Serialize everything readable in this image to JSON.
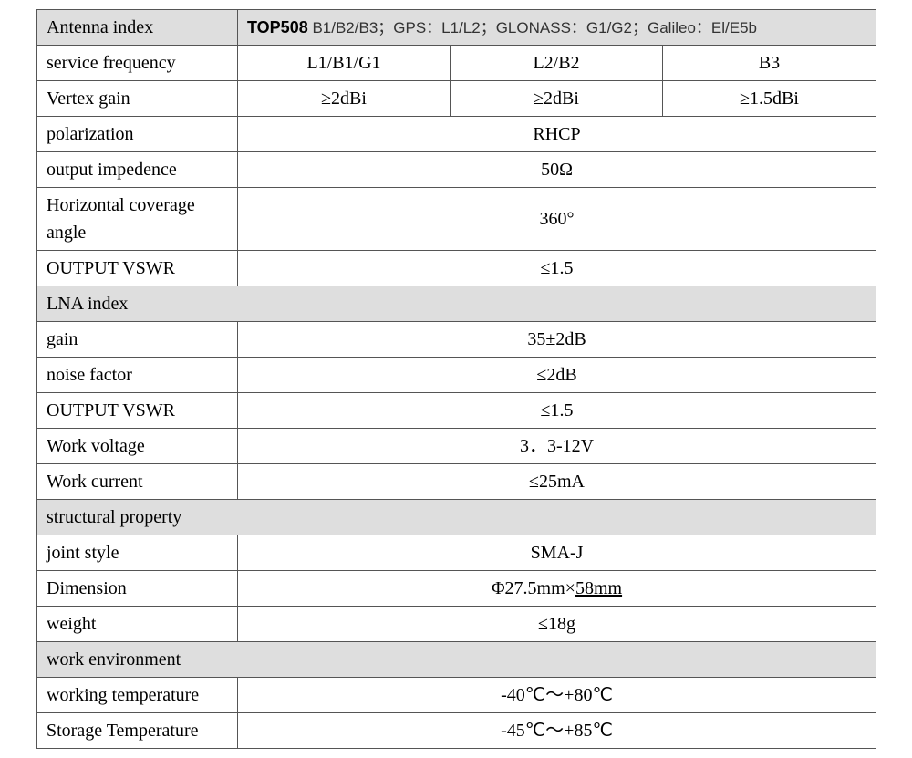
{
  "header": {
    "antenna_index_label": "Antenna index",
    "model_bold": "TOP508",
    "model_rest": "  B1/B2/B3；GPS：L1/L2；GLONASS：G1/G2；Galileo：El/E5b"
  },
  "service_frequency": {
    "label": "service frequency",
    "col1": "L1/B1/G1",
    "col2": "L2/B2",
    "col3": "B3"
  },
  "vertex_gain": {
    "label": "Vertex gain",
    "col1": "≥2dBi",
    "col2": "≥2dBi",
    "col3": "≥1.5dBi"
  },
  "polarization": {
    "label": "polarization",
    "value": "RHCP"
  },
  "output_impedence": {
    "label": "output impedence",
    "value": "50Ω"
  },
  "horizontal_coverage": {
    "label": "Horizontal coverage angle",
    "value": "360°"
  },
  "output_vswr_1": {
    "label": "OUTPUT VSWR",
    "value": "≤1.5"
  },
  "lna_header": "LNA index",
  "gain": {
    "label": "gain",
    "value": "35±2dB"
  },
  "noise_factor": {
    "label": "noise factor",
    "value": "≤2dB"
  },
  "output_vswr_2": {
    "label": "OUTPUT VSWR",
    "value": "≤1.5"
  },
  "work_voltage": {
    "label": "Work voltage",
    "value": "3．3-12V"
  },
  "work_current": {
    "label": "Work current",
    "value": "≤25mA"
  },
  "structural_header": "structural property",
  "joint_style": {
    "label": "joint style",
    "value": "SMA-J"
  },
  "dimension": {
    "label": "Dimension",
    "value_main": "Φ27.5mm×",
    "value_suffix": "58mm"
  },
  "weight": {
    "label": "weight",
    "value": "≤18g"
  },
  "work_env_header": "work environment",
  "working_temp": {
    "label": "working temperature",
    "value": "-40℃～+80℃"
  },
  "storage_temp": {
    "label": "Storage Temperature",
    "value": "-45℃～+85℃"
  }
}
